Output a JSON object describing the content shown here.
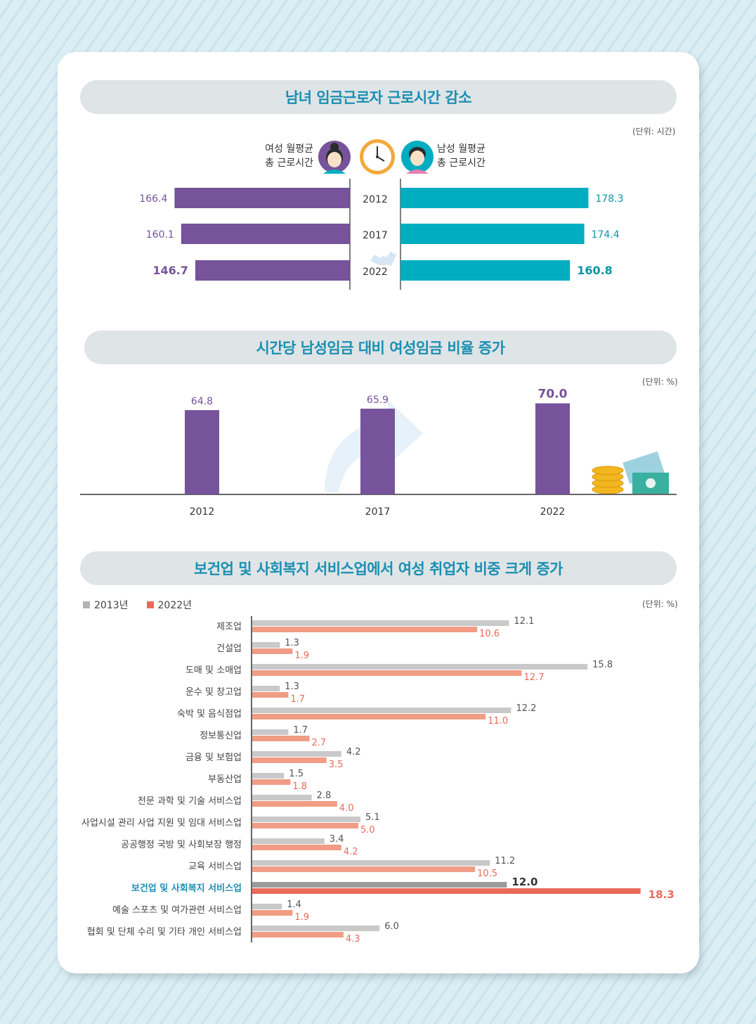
{
  "section1": {
    "title": "남녀 임금근로자 근로시간 감소",
    "unit": "(단위: 시간)",
    "female_label_line1": "여성 월평균",
    "female_label_line2": "총 근로시간",
    "male_label_line1": "남성 월평균",
    "male_label_line2": "총 근로시간"
  },
  "section2": {
    "title": "시간당 남성임금 대비 여성임금 비율 증가",
    "unit": "(단위: %)"
  },
  "section3": {
    "title": "보건업 및 사회복지 서비스업에서 여성 취업자 비중 크게 증가",
    "unit": "(단위: %)",
    "legend_2013": "2013년",
    "legend_2022": "2022년"
  },
  "chart_data": [
    {
      "type": "bar",
      "orientation": "horizontal-butterfly",
      "categories": [
        "2012",
        "2017",
        "2022"
      ],
      "series": [
        {
          "name": "여성 월평균 총 근로시간",
          "values": [
            166.4,
            160.1,
            146.7
          ],
          "color": "#76539a"
        },
        {
          "name": "남성 월평균 총 근로시간",
          "values": [
            178.3,
            174.4,
            160.8
          ],
          "color": "#02adc1"
        }
      ]
    },
    {
      "type": "bar",
      "categories": [
        "2012",
        "2017",
        "2022"
      ],
      "values": [
        64.8,
        65.9,
        70.0
      ],
      "value_labels": [
        "64.8",
        "65.9",
        "70.0"
      ],
      "color": "#76539a"
    },
    {
      "type": "bar",
      "orientation": "horizontal",
      "categories": [
        "제조업",
        "건설업",
        "도매 및 소매업",
        "운수 및 창고업",
        "숙박 및 음식점업",
        "정보통신업",
        "금융 및 보험업",
        "부동산업",
        "전문 과학 및 기술 서비스업",
        "사업시설 관리 사업 지원 및 임대 서비스업",
        "공공행정 국방 및 사회보장 행정",
        "교육 서비스업",
        "보건업 및 사회복지 서비스업",
        "예술 스포츠 및 여가관련 서비스업",
        "협회 및 단체 수리 및 기타 개인 서비스업"
      ],
      "highlight_category": "보건업 및 사회복지 서비스업",
      "series": [
        {
          "name": "2013년",
          "values": [
            12.1,
            1.3,
            15.8,
            1.3,
            12.2,
            1.7,
            4.2,
            1.5,
            2.8,
            5.1,
            3.4,
            11.2,
            12.0,
            1.4,
            6.0
          ],
          "value_labels": [
            "12.1",
            "1.3",
            "15.8",
            "1.3",
            "12.2",
            "1.7",
            "4.2",
            "1.5",
            "2.8",
            "5.1",
            "3.4",
            "11.2",
            "12.0",
            "1.4",
            "6.0"
          ],
          "color": "#c9c9c9"
        },
        {
          "name": "2022년",
          "values": [
            10.6,
            1.9,
            12.7,
            1.7,
            11.0,
            2.7,
            3.5,
            1.8,
            4.0,
            5.0,
            4.2,
            10.5,
            18.3,
            1.9,
            4.3
          ],
          "value_labels": [
            "10.6",
            "1.9",
            "12.7",
            "1.7",
            "11.0",
            "2.7",
            "3.5",
            "1.8",
            "4.0",
            "5.0",
            "4.2",
            "10.5",
            "18.3",
            "1.9",
            "4.3"
          ],
          "color": "#f19c84"
        }
      ]
    }
  ]
}
